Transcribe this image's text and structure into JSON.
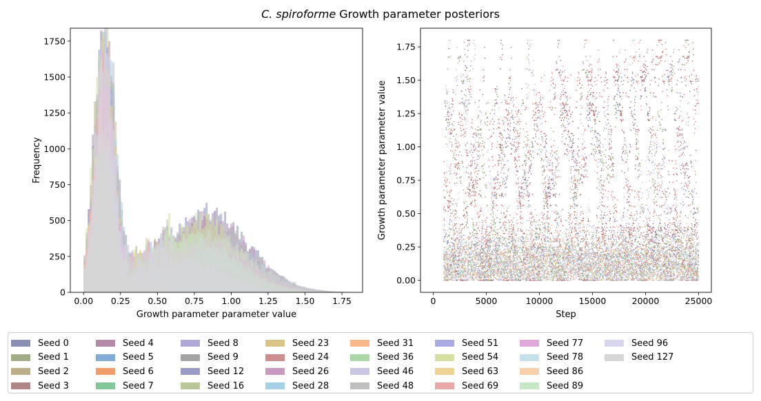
{
  "title_italic": "C. spiroforme",
  "title_rest": " Growth parameter posteriors",
  "chart_data": [
    {
      "type": "histogram",
      "xlabel": "Growth parameter parameter value",
      "ylabel": "Frequency",
      "xlim": [
        -0.09,
        1.89
      ],
      "ylim": [
        0,
        1840
      ],
      "xticks": [
        0.0,
        0.25,
        0.5,
        0.75,
        1.0,
        1.25,
        1.5,
        1.75
      ],
      "xtick_labels": [
        "0.00",
        "0.25",
        "0.50",
        "0.75",
        "1.00",
        "1.25",
        "1.50",
        "1.75"
      ],
      "yticks": [
        0,
        250,
        500,
        750,
        1000,
        1250,
        1500,
        1750
      ],
      "ytick_labels": [
        "0",
        "250",
        "500",
        "750",
        "1000",
        "1250",
        "1500",
        "1750"
      ],
      "bin_width": 0.014,
      "peaks": {
        "low_mode": {
          "x": 0.14,
          "max_frequency": 1760
        },
        "high_mode": {
          "x": 0.8,
          "max_frequency": 545
        }
      },
      "x_max": 1.8
    },
    {
      "type": "scatter",
      "xlabel": "Step",
      "ylabel": "Growth parameter parameter value",
      "xlim": [
        -1200,
        26200
      ],
      "ylim": [
        -0.09,
        1.89
      ],
      "xticks": [
        0,
        5000,
        10000,
        15000,
        20000,
        25000
      ],
      "xtick_labels": [
        "0",
        "5000",
        "10000",
        "15000",
        "20000",
        "25000"
      ],
      "yticks": [
        0.0,
        0.25,
        0.5,
        0.75,
        1.0,
        1.25,
        1.5,
        1.75
      ],
      "ytick_labels": [
        "0.00",
        "0.25",
        "0.50",
        "0.75",
        "1.00",
        "1.25",
        "1.50",
        "1.75"
      ],
      "step_range": [
        1000,
        25000
      ],
      "value_range": [
        0.0,
        1.8
      ]
    }
  ],
  "legend": [
    {
      "label": "Seed 0",
      "color": "#8a8fb4"
    },
    {
      "label": "Seed 1",
      "color": "#a0ad88"
    },
    {
      "label": "Seed 2",
      "color": "#bcae88"
    },
    {
      "label": "Seed 3",
      "color": "#b08584"
    },
    {
      "label": "Seed 4",
      "color": "#b48aa8"
    },
    {
      "label": "Seed 5",
      "color": "#82acd6"
    },
    {
      "label": "Seed 6",
      "color": "#ef9b6a"
    },
    {
      "label": "Seed 7",
      "color": "#84c69a"
    },
    {
      "label": "Seed 8",
      "color": "#afa8d6"
    },
    {
      "label": "Seed 9",
      "color": "#a3a3a3"
    },
    {
      "label": "Seed 12",
      "color": "#9a9ac8"
    },
    {
      "label": "Seed 16",
      "color": "#b8c69a"
    },
    {
      "label": "Seed 23",
      "color": "#d8c484"
    },
    {
      "label": "Seed 24",
      "color": "#ce8c8c"
    },
    {
      "label": "Seed 26",
      "color": "#c898c0"
    },
    {
      "label": "Seed 28",
      "color": "#a6d0e6"
    },
    {
      "label": "Seed 31",
      "color": "#f8b88a"
    },
    {
      "label": "Seed 36",
      "color": "#acd8a8"
    },
    {
      "label": "Seed 46",
      "color": "#c8c6e0"
    },
    {
      "label": "Seed 48",
      "color": "#bebebe"
    },
    {
      "label": "Seed 51",
      "color": "#a8ace0"
    },
    {
      "label": "Seed 54",
      "color": "#d4e0a4"
    },
    {
      "label": "Seed 63",
      "color": "#eed494"
    },
    {
      "label": "Seed 69",
      "color": "#e8a8a8"
    },
    {
      "label": "Seed 77",
      "color": "#e0a8d8"
    },
    {
      "label": "Seed 78",
      "color": "#c4e0ec"
    },
    {
      "label": "Seed 86",
      "color": "#f8d0a8"
    },
    {
      "label": "Seed 89",
      "color": "#c4e8c4"
    },
    {
      "label": "Seed 96",
      "color": "#d8d6ee"
    },
    {
      "label": "Seed 127",
      "color": "#d6d6d6"
    }
  ]
}
